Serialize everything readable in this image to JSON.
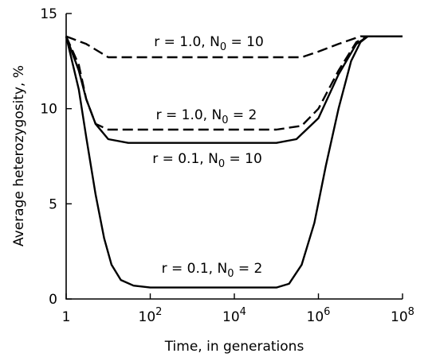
{
  "chart_data": {
    "type": "line",
    "title": "",
    "xlabel": "Time, in generations",
    "ylabel": "Average heterozygosity, %",
    "x_scale": "log10",
    "xlim": [
      1,
      100000000
    ],
    "ylim": [
      0,
      15
    ],
    "grid": false,
    "x_ticks": [
      {
        "value": 1,
        "base": "1",
        "exp": ""
      },
      {
        "value": 100,
        "base": "10",
        "exp": "2"
      },
      {
        "value": 10000,
        "base": "10",
        "exp": "4"
      },
      {
        "value": 1000000,
        "base": "10",
        "exp": "6"
      },
      {
        "value": 100000000,
        "base": "10",
        "exp": "8"
      }
    ],
    "y_ticks": [
      0,
      5,
      10,
      15
    ],
    "series": [
      {
        "name": "r = 1.0, N0 = 10",
        "label_main": "r = 1.0, N",
        "label_sub": "0",
        "label_tail": " = 10",
        "style": "dashed",
        "x": [
          1,
          3,
          10,
          30,
          1000,
          100000,
          400000,
          1000000,
          3000000,
          10000000,
          100000000
        ],
        "y": [
          13.8,
          13.4,
          12.7,
          12.7,
          12.7,
          12.7,
          12.7,
          13.0,
          13.4,
          13.8,
          13.8
        ]
      },
      {
        "name": "r = 1.0, N0 = 2",
        "label_main": "r = 1.0, N",
        "label_sub": "0",
        "label_tail": " = 2",
        "style": "dashed",
        "x": [
          1,
          2,
          3,
          5,
          10,
          100000,
          400000,
          1000000,
          3000000,
          8000000,
          15000000,
          100000000
        ],
        "y": [
          13.8,
          12.3,
          10.5,
          9.2,
          8.9,
          8.9,
          9.1,
          10.0,
          12.0,
          13.5,
          13.8,
          13.8
        ]
      },
      {
        "name": "r = 0.1, N0 = 10",
        "label_main": "r = 0.1, N",
        "label_sub": "0",
        "label_tail": " = 10",
        "style": "solid",
        "x": [
          1,
          2,
          3,
          5,
          10,
          30,
          100000,
          300000,
          1000000,
          3000000,
          8000000,
          15000000,
          100000000
        ],
        "y": [
          13.8,
          12.0,
          10.5,
          9.2,
          8.4,
          8.2,
          8.2,
          8.4,
          9.5,
          11.8,
          13.4,
          13.8,
          13.8
        ]
      },
      {
        "name": "r = 0.1, N0 = 2",
        "label_main": "r = 0.1, N",
        "label_sub": "0",
        "label_tail": " = 2",
        "style": "solid",
        "x": [
          1,
          2,
          3,
          5,
          8,
          12,
          20,
          40,
          100,
          100000,
          200000,
          400000,
          800000,
          1500000,
          3000000,
          6000000,
          10000000,
          15000000,
          100000000
        ],
        "y": [
          13.8,
          11.0,
          8.5,
          5.5,
          3.2,
          1.8,
          1.0,
          0.7,
          0.6,
          0.6,
          0.8,
          1.8,
          4.0,
          7.0,
          10.0,
          12.5,
          13.5,
          13.8,
          13.8
        ]
      }
    ]
  }
}
